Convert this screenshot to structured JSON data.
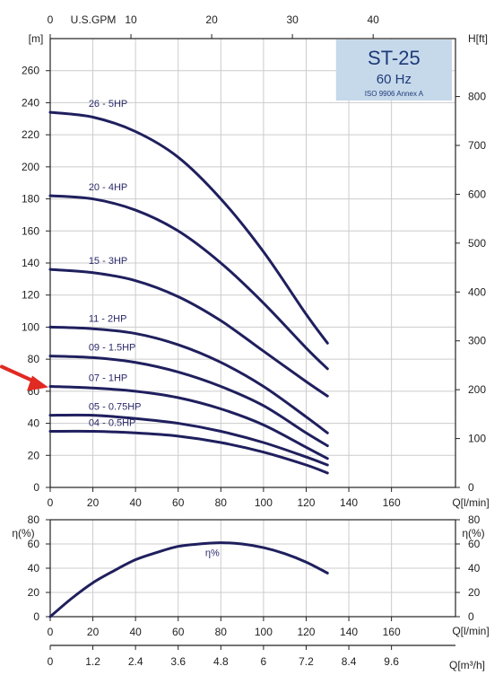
{
  "chart_data": [
    {
      "id": "head",
      "type": "line",
      "x_label": "Q[l/min]",
      "top_axis_label": "U.S.GPM",
      "y_label_left": "[m]",
      "y_label_right": "H[ft]",
      "xlim": [
        0,
        190
      ],
      "ylim": [
        0,
        280
      ],
      "x_ticks": [
        0,
        20,
        40,
        60,
        80,
        100,
        120,
        140,
        160
      ],
      "y_ticks": [
        0,
        20,
        40,
        60,
        80,
        100,
        120,
        140,
        160,
        180,
        200,
        220,
        240,
        260
      ],
      "top_ticks": [
        0,
        10,
        20,
        30,
        40
      ],
      "right_ticks": [
        0,
        100,
        200,
        300,
        400,
        500,
        600,
        700,
        800
      ],
      "grid": true,
      "badge": {
        "title": "ST-25",
        "subtitle": "60 Hz",
        "standard": "ISO 9906 Annex A"
      },
      "series": [
        {
          "name": "26 - 5HP",
          "x": [
            0,
            20,
            40,
            60,
            80,
            100,
            120,
            130
          ],
          "y": [
            234,
            231,
            222,
            206,
            180,
            147,
            108,
            90
          ]
        },
        {
          "name": "20 - 4HP",
          "x": [
            0,
            20,
            40,
            60,
            80,
            100,
            120,
            130
          ],
          "y": [
            182,
            180,
            173,
            160,
            140,
            115,
            87,
            74
          ]
        },
        {
          "name": "15 - 3HP",
          "x": [
            0,
            20,
            40,
            60,
            80,
            100,
            120,
            130
          ],
          "y": [
            136,
            134,
            129,
            119,
            104,
            85,
            66,
            57
          ]
        },
        {
          "name": "11 - 2HP",
          "x": [
            0,
            20,
            40,
            60,
            80,
            100,
            120,
            130
          ],
          "y": [
            100,
            99,
            96,
            89,
            78,
            63,
            44,
            34
          ]
        },
        {
          "name": "09 - 1.5HP",
          "x": [
            0,
            20,
            40,
            60,
            80,
            100,
            120,
            130
          ],
          "y": [
            82,
            81,
            78,
            72,
            63,
            51,
            34,
            26
          ]
        },
        {
          "name": "07 - 1HP",
          "x": [
            0,
            20,
            40,
            60,
            80,
            100,
            120,
            130
          ],
          "y": [
            63,
            62,
            60,
            56,
            49,
            39,
            25,
            18
          ]
        },
        {
          "name": "05 - 0.75HP",
          "x": [
            0,
            20,
            40,
            60,
            80,
            100,
            120,
            130
          ],
          "y": [
            45,
            45,
            43,
            40,
            35,
            28,
            19,
            14
          ]
        },
        {
          "name": "04 - 0.5HP",
          "x": [
            0,
            20,
            40,
            60,
            80,
            100,
            120,
            130
          ],
          "y": [
            35,
            35,
            34,
            32,
            28,
            22,
            14,
            9
          ]
        }
      ]
    },
    {
      "id": "efficiency",
      "type": "line",
      "y_label_left": "η(%)",
      "y_label_right": "η(%)",
      "x_label": "Q[l/min]",
      "xlim": [
        0,
        190
      ],
      "ylim": [
        0,
        80
      ],
      "x_ticks": [
        0,
        20,
        40,
        60,
        80,
        100,
        120,
        140,
        160
      ],
      "y_ticks": [
        0,
        20,
        40,
        60,
        80
      ],
      "grid": true,
      "series": [
        {
          "name": "η%",
          "x": [
            0,
            10,
            20,
            30,
            40,
            50,
            60,
            70,
            80,
            90,
            100,
            110,
            120,
            130
          ],
          "y": [
            0,
            15,
            28,
            38,
            47,
            53,
            58,
            60,
            61,
            60,
            57,
            52,
            45,
            36
          ]
        }
      ]
    },
    {
      "id": "flow-m3h",
      "type": "axis",
      "x_label": "Q[m³/h]",
      "x_ticks": [
        "0",
        "1.2",
        "2.4",
        "3.6",
        "4.8",
        "6",
        "7.2",
        "8.4",
        "9.6"
      ]
    }
  ]
}
